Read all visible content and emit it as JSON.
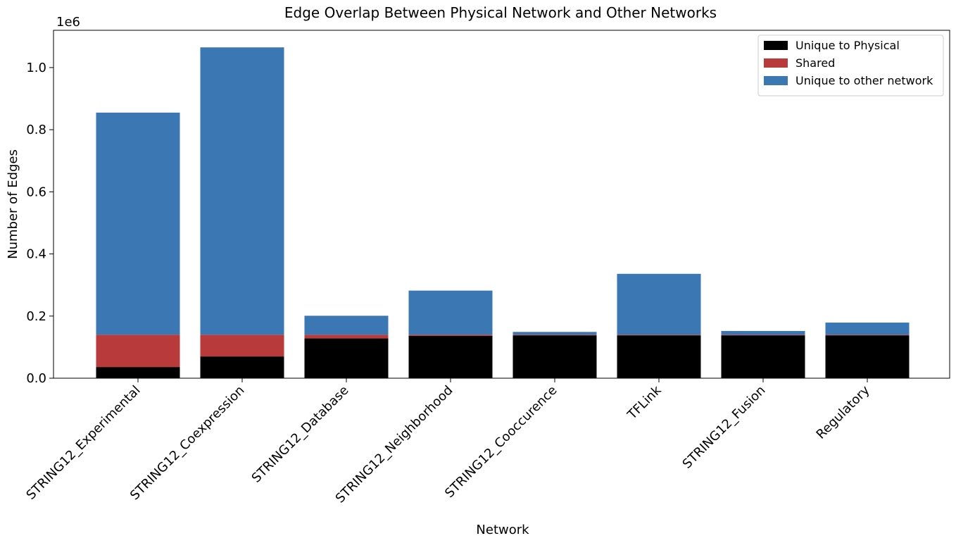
{
  "chart_data": {
    "type": "bar",
    "stacked": true,
    "title": "Edge Overlap Between Physical Network and Other Networks",
    "xlabel": "Network",
    "ylabel": "Number of Edges",
    "y_multiplier_label": "1e6",
    "ylim": [
      0,
      1120000
    ],
    "yticks": [
      0,
      200000,
      400000,
      600000,
      800000,
      1000000
    ],
    "ytick_labels": [
      "0.0",
      "0.2",
      "0.4",
      "0.6",
      "0.8",
      "1.0"
    ],
    "categories": [
      "STRING12_Experimental",
      "STRING12_Coexpression",
      "STRING12_Database",
      "STRING12_Neighborhood",
      "STRING12_Cooccurence",
      "TFLink",
      "STRING12_Fusion",
      "Regulatory"
    ],
    "series": [
      {
        "name": "Unique to Physical",
        "color": "#000000",
        "values": [
          36000,
          70000,
          128000,
          136000,
          138000,
          138000,
          138000,
          138000
        ]
      },
      {
        "name": "Shared",
        "color": "#b83a3a",
        "values": [
          104000,
          70000,
          12000,
          4000,
          2000,
          2000,
          2000,
          2000
        ]
      },
      {
        "name": "Unique to other network",
        "color": "#3a77b3",
        "values": [
          715000,
          925000,
          61000,
          142000,
          9000,
          196000,
          12000,
          39000
        ]
      }
    ],
    "legend_position": "top-right",
    "grid": false
  }
}
